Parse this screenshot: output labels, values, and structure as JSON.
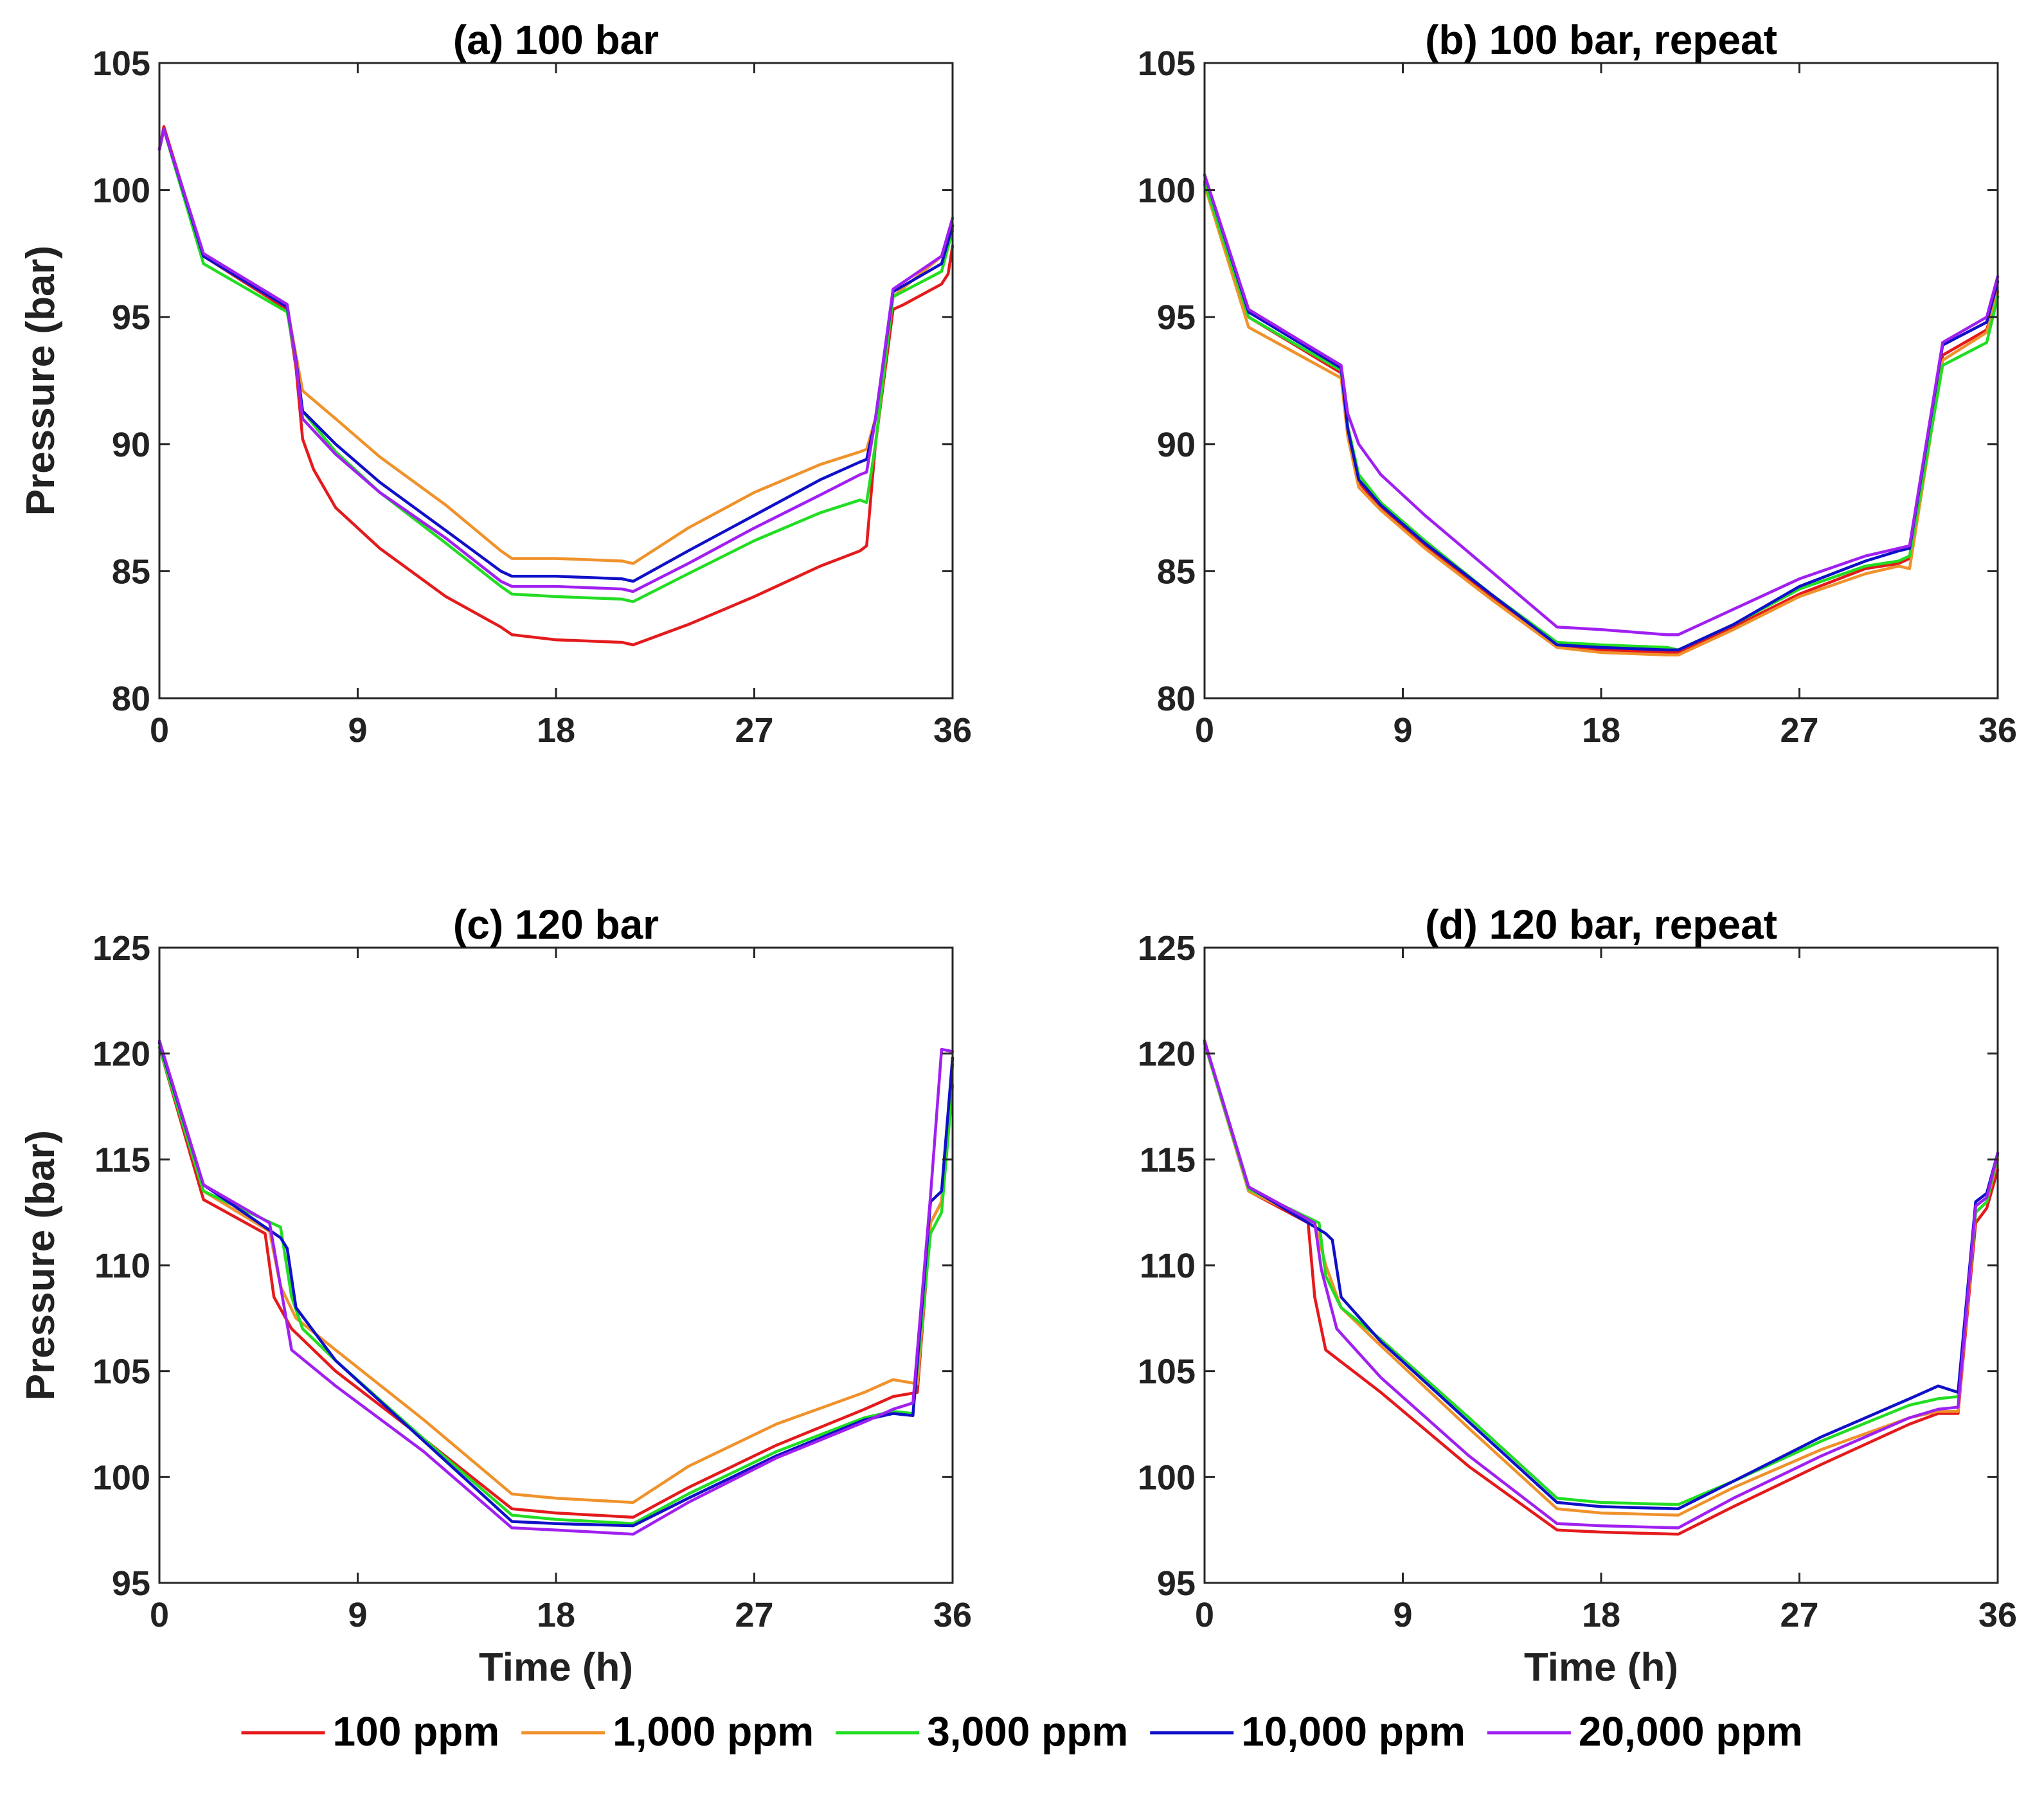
{
  "chart_data": [
    {
      "type": "line",
      "title": "(a) 100 bar",
      "xlabel": "",
      "ylabel": "Pressure (bar)",
      "xlim": [
        0,
        36
      ],
      "ylim": [
        80,
        105
      ],
      "xticks": [
        0,
        9,
        18,
        27,
        36
      ],
      "yticks": [
        80,
        85,
        90,
        95,
        100,
        105
      ],
      "grid": false,
      "series": [
        {
          "name": "100 ppm",
          "x": [
            0,
            0.2,
            2,
            5.8,
            6.2,
            6.5,
            7,
            8,
            10,
            13,
            15.5,
            16,
            18,
            21,
            21.5,
            24,
            27,
            30,
            31.8,
            32.1,
            32.5,
            33.3,
            33.8,
            35.5,
            35.8,
            36
          ],
          "y": [
            101.6,
            102.5,
            97.4,
            95.3,
            93,
            90.2,
            89,
            87.5,
            85.9,
            84,
            82.8,
            82.5,
            82.3,
            82.2,
            82.1,
            82.9,
            84,
            85.2,
            85.8,
            86,
            90,
            95.3,
            95.5,
            96.3,
            96.7,
            97.8
          ]
        },
        {
          "name": "1,000 ppm",
          "x": [
            0,
            0.2,
            2,
            5.8,
            6.2,
            6.5,
            8,
            10,
            13,
            15.5,
            16,
            18,
            21,
            21.5,
            24,
            27,
            30,
            31.8,
            32.1,
            32.5,
            33.3,
            35.5,
            36
          ],
          "y": [
            101.6,
            102.4,
            97.4,
            95.4,
            93.5,
            92.1,
            91,
            89.5,
            87.6,
            85.8,
            85.5,
            85.5,
            85.4,
            85.3,
            86.7,
            88.1,
            89.2,
            89.7,
            89.8,
            91,
            95.8,
            97.4,
            98.5
          ]
        },
        {
          "name": "3,000 ppm",
          "x": [
            0,
            0.2,
            2,
            5.8,
            6.2,
            6.5,
            8,
            10,
            13,
            15.5,
            16,
            18,
            21,
            21.5,
            24,
            27,
            30,
            31.8,
            32.1,
            32.5,
            33.3,
            35.5,
            36
          ],
          "y": [
            101.6,
            102.4,
            97.1,
            95.2,
            93.2,
            91.3,
            89.7,
            88.1,
            86.1,
            84.4,
            84.1,
            84,
            83.9,
            83.8,
            84.9,
            86.2,
            87.3,
            87.8,
            87.7,
            90,
            95.8,
            96.8,
            98.4
          ]
        },
        {
          "name": "10,000 ppm",
          "x": [
            0,
            0.2,
            2,
            5.8,
            6.2,
            6.5,
            8,
            10,
            13,
            15.5,
            16,
            18,
            21,
            21.5,
            24,
            27,
            30,
            31.8,
            32.1,
            32.5,
            33.3,
            35.5,
            36
          ],
          "y": [
            101.6,
            102.4,
            97.4,
            95.4,
            93.3,
            91.3,
            90,
            88.5,
            86.6,
            85,
            84.8,
            84.8,
            84.7,
            84.6,
            85.8,
            87.2,
            88.6,
            89.3,
            89.4,
            91,
            96,
            97.1,
            98.6
          ]
        },
        {
          "name": "20,000 ppm",
          "x": [
            0,
            0.2,
            2,
            5.8,
            6.2,
            6.5,
            8,
            10,
            13,
            15.5,
            16,
            18,
            21,
            21.5,
            24,
            27,
            30,
            31.8,
            32.1,
            32.5,
            33.3,
            35.5,
            36
          ],
          "y": [
            101.6,
            102.4,
            97.5,
            95.5,
            93.2,
            91,
            89.6,
            88.1,
            86.3,
            84.6,
            84.4,
            84.4,
            84.3,
            84.2,
            85.3,
            86.7,
            88,
            88.8,
            88.9,
            91,
            96.1,
            97.4,
            98.9
          ]
        }
      ]
    },
    {
      "type": "line",
      "title": "(b) 100 bar, repeat",
      "xlabel": "",
      "ylabel": "",
      "xlim": [
        0,
        36
      ],
      "ylim": [
        80,
        105
      ],
      "xticks": [
        0,
        9,
        18,
        27,
        36
      ],
      "yticks": [
        80,
        85,
        90,
        95,
        100,
        105
      ],
      "grid": false,
      "series": [
        {
          "name": "100 ppm",
          "x": [
            0,
            2,
            6.2,
            6.5,
            7,
            8,
            10,
            13,
            16,
            18,
            21,
            21.5,
            24,
            27,
            30,
            31.5,
            32,
            33.5,
            35.5,
            36
          ],
          "y": [
            100.2,
            95,
            92.8,
            90.5,
            88.5,
            87.5,
            86,
            84,
            82,
            81.9,
            81.8,
            81.8,
            82.8,
            84.1,
            85.1,
            85.3,
            85.5,
            93.5,
            94.5,
            96
          ]
        },
        {
          "name": "1,000 ppm",
          "x": [
            0,
            2,
            6.2,
            6.5,
            7,
            8,
            10,
            13,
            16,
            18,
            21,
            21.5,
            24,
            27,
            30,
            31.5,
            32,
            33.5,
            35.5,
            36
          ],
          "y": [
            100.2,
            94.6,
            92.6,
            90.3,
            88.3,
            87.4,
            85.9,
            83.9,
            82,
            81.8,
            81.7,
            81.7,
            82.7,
            84,
            84.9,
            85.2,
            85.1,
            93.3,
            94.4,
            96
          ]
        },
        {
          "name": "3,000 ppm",
          "x": [
            0,
            2,
            6.2,
            6.5,
            7,
            8,
            10,
            13,
            16,
            18,
            21,
            21.5,
            24,
            27,
            30,
            31.5,
            32,
            33.5,
            35.5,
            36
          ],
          "y": [
            100.3,
            95,
            92.9,
            90.7,
            88.8,
            87.7,
            86.2,
            84.1,
            82.2,
            82.1,
            82,
            81.9,
            82.9,
            84.3,
            85.2,
            85.4,
            85.6,
            93.1,
            94,
            95.8
          ]
        },
        {
          "name": "10,000 ppm",
          "x": [
            0,
            2,
            6.2,
            6.5,
            7,
            8,
            10,
            13,
            16,
            18,
            21,
            21.5,
            24,
            27,
            30,
            31.5,
            32,
            33.5,
            35.5,
            36
          ],
          "y": [
            100.6,
            95.2,
            93,
            90.6,
            88.6,
            87.6,
            86.1,
            84.1,
            82.1,
            82,
            81.9,
            81.9,
            82.9,
            84.4,
            85.4,
            85.8,
            85.9,
            93.9,
            94.8,
            96.4
          ]
        },
        {
          "name": "20,000 ppm",
          "x": [
            0,
            2,
            6.2,
            6.5,
            7,
            8,
            10,
            13,
            16,
            18,
            21,
            21.5,
            24,
            27,
            30,
            31.5,
            32,
            33.5,
            35.5,
            36
          ],
          "y": [
            100.6,
            95.3,
            93.1,
            91.2,
            90,
            88.8,
            87.2,
            85,
            82.8,
            82.7,
            82.5,
            82.5,
            83.5,
            84.7,
            85.6,
            85.9,
            86,
            94,
            95,
            96.6
          ]
        }
      ]
    },
    {
      "type": "line",
      "title": "(c) 120 bar",
      "xlabel": "Time (h)",
      "ylabel": "Pressure (bar)",
      "xlim": [
        0,
        36
      ],
      "ylim": [
        95,
        125
      ],
      "xticks": [
        0,
        9,
        18,
        27,
        36
      ],
      "yticks": [
        95,
        100,
        105,
        110,
        115,
        120,
        125
      ],
      "grid": false,
      "series": [
        {
          "name": "100 ppm",
          "x": [
            0,
            2,
            4.8,
            5.2,
            6,
            8,
            12,
            16,
            18,
            21.5,
            24,
            28,
            32,
            33.3,
            34.4,
            35,
            35.5,
            36
          ],
          "y": [
            120.3,
            113.1,
            111.5,
            108.5,
            107,
            105,
            101.8,
            98.5,
            98.3,
            98.1,
            99.5,
            101.5,
            103.2,
            103.8,
            104,
            112,
            113,
            119.5
          ]
        },
        {
          "name": "1,000 ppm",
          "x": [
            0,
            2,
            5.0,
            5.5,
            6.2,
            8,
            12,
            16,
            18,
            21.5,
            24,
            28,
            32,
            33.3,
            34.4,
            35,
            35.5,
            36
          ],
          "y": [
            120.3,
            113.5,
            111.6,
            109,
            107.5,
            106,
            102.7,
            99.2,
            99,
            98.8,
            100.5,
            102.5,
            104,
            104.6,
            104.4,
            112,
            113,
            119.8
          ]
        },
        {
          "name": "3,000 ppm",
          "x": [
            0,
            2,
            5.5,
            6,
            6.5,
            8,
            12,
            16,
            18,
            21.5,
            24,
            28,
            32,
            33.3,
            34.2,
            35,
            35.5,
            36
          ],
          "y": [
            120.3,
            113.5,
            111.8,
            108.5,
            107,
            105.5,
            101.8,
            98.2,
            98,
            97.8,
            99.2,
            101.2,
            102.8,
            103.1,
            103,
            111.5,
            112.5,
            118.5
          ]
        },
        {
          "name": "10,000 ppm",
          "x": [
            0,
            2,
            5.5,
            5.8,
            6.2,
            8,
            12,
            16,
            18,
            21.5,
            24,
            28,
            32,
            33.3,
            34.2,
            35,
            35.5,
            36
          ],
          "y": [
            120.5,
            113.8,
            111.3,
            110.8,
            108,
            105.5,
            101.7,
            97.9,
            97.8,
            97.7,
            99,
            101,
            102.7,
            103,
            102.9,
            113,
            113.5,
            119.8
          ]
        },
        {
          "name": "20,000 ppm",
          "x": [
            0,
            2,
            5.0,
            5.5,
            6.0,
            8,
            12,
            16,
            18,
            21.5,
            24,
            28,
            32,
            33.3,
            34.2,
            35,
            35.5,
            36
          ],
          "y": [
            120.6,
            113.8,
            112,
            109,
            106,
            104.3,
            101.2,
            97.6,
            97.5,
            97.3,
            98.8,
            100.9,
            102.6,
            103.2,
            103.5,
            113.3,
            120.2,
            120.1
          ]
        }
      ]
    },
    {
      "type": "line",
      "title": "(d) 120 bar, repeat",
      "xlabel": "Time (h)",
      "ylabel": "",
      "xlim": [
        0,
        36
      ],
      "ylim": [
        95,
        125
      ],
      "xticks": [
        0,
        9,
        18,
        27,
        36
      ],
      "yticks": [
        95,
        100,
        105,
        110,
        115,
        120,
        125
      ],
      "grid": false,
      "series": [
        {
          "name": "100 ppm",
          "x": [
            0,
            2,
            4.7,
            5.0,
            5.5,
            8,
            12,
            16,
            18,
            21.5,
            24,
            28,
            32,
            33.3,
            34.2,
            35,
            35.5,
            36
          ],
          "y": [
            120.5,
            113.5,
            112,
            108.5,
            106,
            104,
            100.5,
            97.5,
            97.4,
            97.3,
            98.6,
            100.6,
            102.5,
            103,
            103,
            112,
            112.7,
            114.5
          ]
        },
        {
          "name": "1,000 ppm",
          "x": [
            0,
            2,
            5.0,
            5.5,
            6.2,
            8,
            12,
            16,
            18,
            21.5,
            24,
            28,
            32,
            33.3,
            34.2,
            35,
            35.5,
            36
          ],
          "y": [
            120.5,
            113.5,
            112,
            110,
            108,
            106.2,
            102.3,
            98.5,
            98.3,
            98.2,
            99.5,
            101.3,
            102.8,
            103.1,
            103.1,
            112.5,
            113,
            115
          ]
        },
        {
          "name": "3,000 ppm",
          "x": [
            0,
            2,
            5.2,
            5.5,
            6.2,
            8,
            12,
            16,
            18,
            21.5,
            24,
            28,
            32,
            33.3,
            34.2,
            35,
            35.5,
            36
          ],
          "y": [
            120.5,
            113.6,
            112,
            109.5,
            108,
            106.5,
            102.8,
            99,
            98.8,
            98.7,
            99.8,
            101.7,
            103.4,
            103.7,
            103.8,
            112.5,
            113,
            115.2
          ]
        },
        {
          "name": "10,000 ppm",
          "x": [
            0,
            2,
            5.5,
            5.8,
            6.2,
            8,
            12,
            16,
            18,
            21.5,
            24,
            28,
            32,
            33.3,
            34.2,
            35,
            35.5,
            36
          ],
          "y": [
            120.6,
            113.7,
            111.5,
            111.2,
            108.5,
            106.4,
            102.6,
            98.8,
            98.6,
            98.5,
            99.8,
            101.9,
            103.7,
            104.3,
            104,
            113,
            113.4,
            115.3
          ]
        },
        {
          "name": "20,000 ppm",
          "x": [
            0,
            2,
            5.0,
            5.3,
            6.0,
            8,
            12,
            16,
            18,
            21.5,
            24,
            28,
            32,
            33.3,
            34.2,
            35,
            35.5,
            36
          ],
          "y": [
            120.6,
            113.7,
            112,
            109.8,
            107,
            104.7,
            101,
            97.8,
            97.7,
            97.6,
            99,
            101,
            102.8,
            103.2,
            103.3,
            112.8,
            113.2,
            115.3
          ]
        }
      ]
    }
  ],
  "legend": {
    "placement": "bottom",
    "entries": [
      {
        "label": "100 ppm",
        "color": "#e41a1c"
      },
      {
        "label": "1,000 ppm",
        "color": "#f0922b"
      },
      {
        "label": "3,000 ppm",
        "color": "#22dd22"
      },
      {
        "label": "10,000 ppm",
        "color": "#1010c8"
      },
      {
        "label": "20,000 ppm",
        "color": "#a020f0"
      }
    ]
  }
}
